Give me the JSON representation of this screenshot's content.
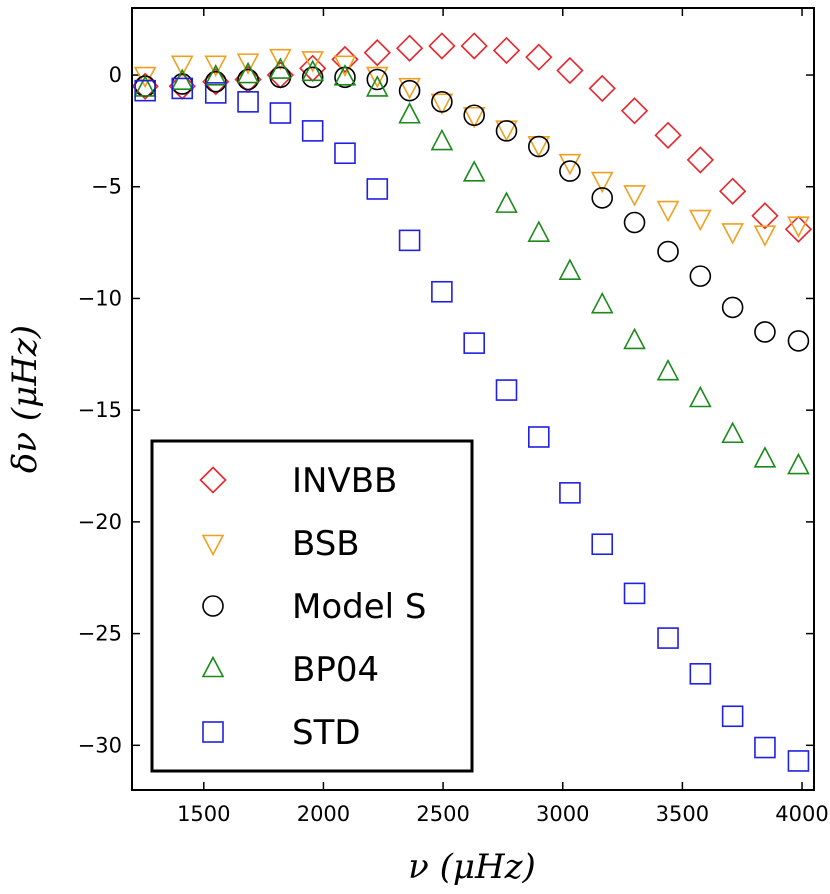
{
  "chart_data": {
    "type": "scatter",
    "xlabel": "ν (μHz)",
    "ylabel": "δν (μHz)",
    "xlim": [
      1200,
      4050
    ],
    "ylim": [
      -32,
      3
    ],
    "xticks": [
      1500,
      2000,
      2500,
      3000,
      3500,
      4000
    ],
    "yticks": [
      0,
      -5,
      -10,
      -15,
      -20,
      -25,
      -30
    ],
    "xtick_labels": [
      "1500",
      "2000",
      "2500",
      "3000",
      "3500",
      "4000"
    ],
    "ytick_labels": [
      "0",
      "−5",
      "−10",
      "−15",
      "−20",
      "−25",
      "−30"
    ],
    "grid": false,
    "legend_position": "bottom-left",
    "series": [
      {
        "name": "INVBB",
        "marker": "diamond",
        "color": "#e8242b",
        "x": [
          1255,
          1410,
          1550,
          1685,
          1820,
          1955,
          2090,
          2225,
          2360,
          2495,
          2630,
          2765,
          2900,
          3030,
          3165,
          3300,
          3440,
          3575,
          3710,
          3845,
          3985
        ],
        "y": [
          -0.5,
          -0.5,
          -0.3,
          -0.2,
          0.0,
          0.3,
          0.7,
          1.0,
          1.2,
          1.3,
          1.3,
          1.1,
          0.8,
          0.2,
          -0.6,
          -1.6,
          -2.7,
          -3.8,
          -5.2,
          -6.3,
          -6.9
        ]
      },
      {
        "name": "BSB",
        "marker": "triangle-down",
        "color": "#f0a020",
        "x": [
          1255,
          1410,
          1550,
          1685,
          1820,
          1955,
          2090,
          2225,
          2360,
          2495,
          2630,
          2765,
          2900,
          3030,
          3165,
          3300,
          3440,
          3575,
          3710,
          3845,
          3985
        ],
        "y": [
          0.0,
          0.5,
          0.5,
          0.6,
          0.8,
          0.7,
          0.5,
          0.0,
          -0.5,
          -1.2,
          -1.8,
          -2.4,
          -3.1,
          -3.9,
          -4.7,
          -5.3,
          -6.0,
          -6.4,
          -7.0,
          -7.1,
          -6.7
        ]
      },
      {
        "name": "Model S",
        "marker": "circle",
        "color": "#000000",
        "x": [
          1255,
          1410,
          1550,
          1685,
          1820,
          1955,
          2090,
          2225,
          2360,
          2495,
          2630,
          2765,
          2900,
          3030,
          3165,
          3300,
          3440,
          3575,
          3710,
          3845,
          3985
        ],
        "y": [
          -0.5,
          -0.4,
          -0.3,
          -0.2,
          -0.1,
          -0.1,
          -0.1,
          -0.2,
          -0.7,
          -1.2,
          -1.8,
          -2.5,
          -3.2,
          -4.3,
          -5.5,
          -6.6,
          -7.9,
          -9.0,
          -10.4,
          -11.5,
          -11.9
        ]
      },
      {
        "name": "BP04",
        "marker": "triangle-up",
        "color": "#1a8a1a",
        "x": [
          1255,
          1410,
          1550,
          1685,
          1820,
          1955,
          2090,
          2225,
          2360,
          2495,
          2630,
          2765,
          2900,
          3030,
          3165,
          3300,
          3440,
          3575,
          3710,
          3845,
          3985
        ],
        "y": [
          -0.6,
          -0.3,
          -0.1,
          0.0,
          0.2,
          0.1,
          -0.1,
          -0.6,
          -1.8,
          -3.0,
          -4.4,
          -5.8,
          -7.1,
          -8.8,
          -10.3,
          -11.9,
          -13.3,
          -14.5,
          -16.1,
          -17.2,
          -17.5
        ]
      },
      {
        "name": "STD",
        "marker": "square",
        "color": "#2020e0",
        "x": [
          1255,
          1410,
          1550,
          1685,
          1820,
          1955,
          2090,
          2225,
          2360,
          2495,
          2630,
          2765,
          2900,
          3030,
          3165,
          3300,
          3440,
          3575,
          3710,
          3845,
          3985
        ],
        "y": [
          -0.7,
          -0.6,
          -0.8,
          -1.2,
          -1.7,
          -2.5,
          -3.5,
          -5.1,
          -7.4,
          -9.7,
          -12.0,
          -14.1,
          -16.2,
          -18.7,
          -21.0,
          -23.2,
          -25.2,
          -26.8,
          -28.7,
          -30.1,
          -30.7
        ]
      }
    ]
  }
}
